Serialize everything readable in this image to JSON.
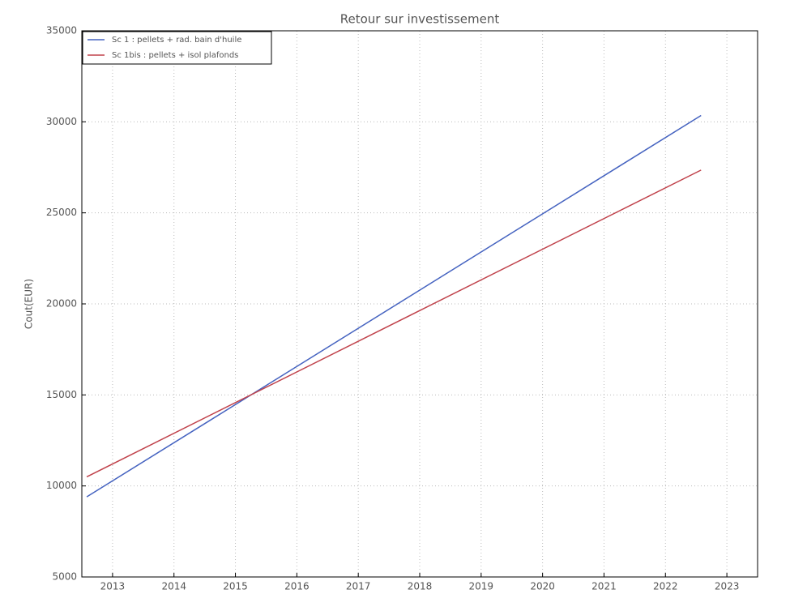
{
  "chart_data": {
    "type": "line",
    "title": "Retour sur investissement",
    "y_label": "Cout(EUR)",
    "x": [
      2012.58,
      2022.58
    ],
    "series": [
      {
        "name": "Sc 1 : pellets + rad. bain d'huile",
        "color": "#4563c0",
        "values": [
          9400,
          30350
        ]
      },
      {
        "name": "Sc 1bis : pellets + isol plafonds",
        "color": "#c0424b",
        "values": [
          10500,
          27350
        ]
      }
    ],
    "xlim": [
      2012.5,
      2023.5
    ],
    "xticks": [
      2013,
      2014,
      2015,
      2016,
      2017,
      2018,
      2019,
      2020,
      2021,
      2022,
      2023
    ],
    "ylim": [
      5000,
      35000
    ],
    "yticks": [
      5000,
      10000,
      15000,
      20000,
      25000,
      30000,
      35000
    ],
    "grid": true,
    "legend": "upper left"
  }
}
